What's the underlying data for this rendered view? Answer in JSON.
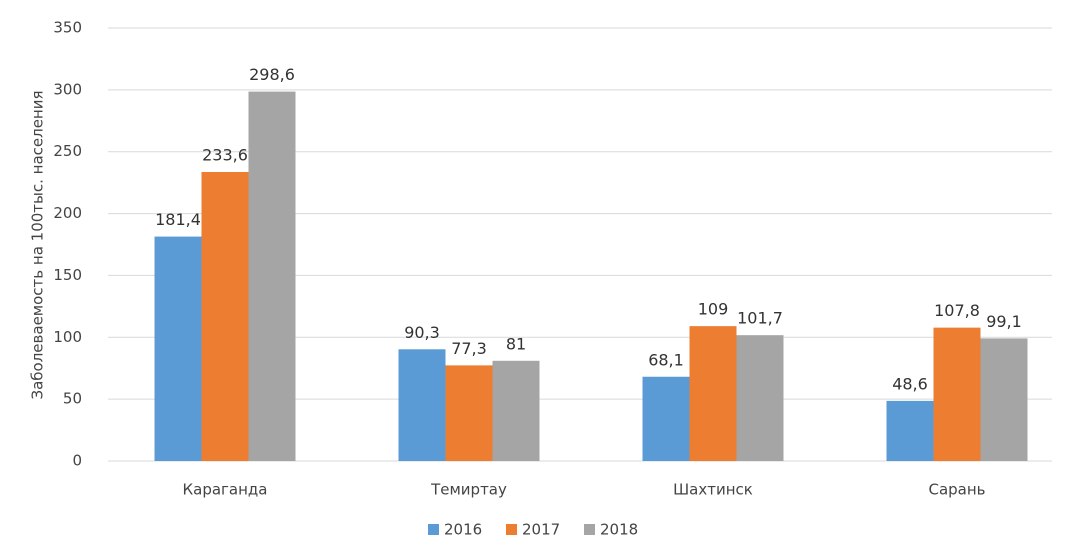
{
  "chart_data": {
    "type": "bar",
    "y_axis_label": "Заболеваемость на 100тыс. населения",
    "categories": [
      "Караганда",
      "Темиртау",
      "Шахтинск",
      "Сарань"
    ],
    "series": [
      {
        "name": "2016",
        "color": "#5b9bd5",
        "values": [
          181.4,
          90.3,
          68.1,
          48.6
        ],
        "value_labels": [
          "181,4",
          "90,3",
          "68,1",
          "48,6"
        ]
      },
      {
        "name": "2017",
        "color": "#ed7d31",
        "values": [
          233.6,
          77.3,
          109,
          107.8
        ],
        "value_labels": [
          "233,6",
          "77,3",
          "109",
          "107,8"
        ]
      },
      {
        "name": "2018",
        "color": "#a5a5a5",
        "values": [
          298.6,
          81,
          101.7,
          99.1
        ],
        "value_labels": [
          "298,6",
          "81",
          "101,7",
          "99,1"
        ]
      }
    ],
    "ylim": [
      0,
      350
    ],
    "yticks": [
      0,
      50,
      100,
      150,
      200,
      250,
      300,
      350
    ],
    "grid": true,
    "legend": "bottom"
  }
}
